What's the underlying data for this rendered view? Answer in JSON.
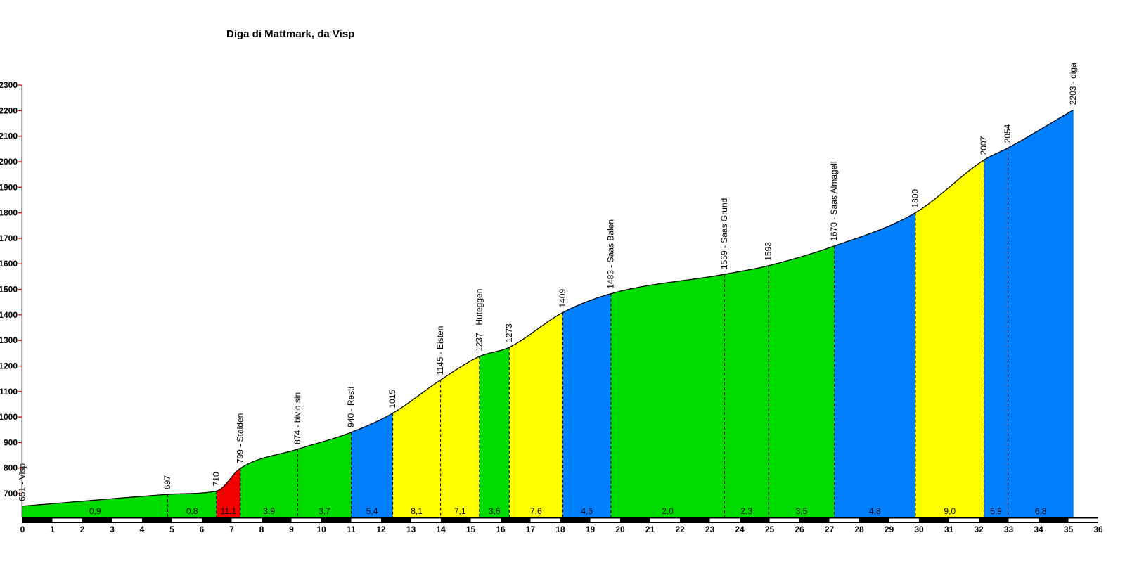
{
  "title": "Diga di Mattmark, da Visp",
  "colors": {
    "green": "#00DC00",
    "blue": "#0080FF",
    "yellow": "#FFFF00",
    "red": "#F20000",
    "tick": "#E00000",
    "line": "#000000",
    "ruler_black": "#000000",
    "ruler_white": "#FFFFFF"
  },
  "chart_data": {
    "type": "area",
    "title": "Diga di Mattmark, da Visp",
    "x_unit": "km",
    "y_unit": "m",
    "xlim": [
      0,
      36
    ],
    "ylim": [
      650,
      2300
    ],
    "grid": false,
    "legend": "none",
    "x_ticks": [
      0,
      1,
      2,
      3,
      4,
      5,
      6,
      7,
      8,
      9,
      10,
      11,
      12,
      13,
      14,
      15,
      16,
      17,
      18,
      19,
      20,
      21,
      22,
      23,
      24,
      25,
      26,
      27,
      28,
      29,
      30,
      31,
      32,
      33,
      34,
      35,
      36
    ],
    "y_ticks": [
      700,
      800,
      900,
      1000,
      1100,
      1200,
      1300,
      1400,
      1500,
      1600,
      1700,
      1800,
      1900,
      2000,
      2100,
      2200,
      2300
    ],
    "points": [
      {
        "km": 0.0,
        "elev": 651,
        "label": "651 - Visp"
      },
      {
        "km": 4.86,
        "elev": 697,
        "label": "697"
      },
      {
        "km": 6.49,
        "elev": 710,
        "label": "710"
      },
      {
        "km": 7.29,
        "elev": 799,
        "label": "799 - Stalden"
      },
      {
        "km": 9.21,
        "elev": 874,
        "label": "874 - bivio sin"
      },
      {
        "km": 11.0,
        "elev": 940,
        "label": "940 - Resti"
      },
      {
        "km": 12.39,
        "elev": 1015,
        "label": "1015"
      },
      {
        "km": 13.99,
        "elev": 1145,
        "label": "1145 - Eisten"
      },
      {
        "km": 15.29,
        "elev": 1237,
        "label": "1237 - Huteggen"
      },
      {
        "km": 16.29,
        "elev": 1273,
        "label": "1273"
      },
      {
        "km": 18.08,
        "elev": 1409,
        "label": "1409"
      },
      {
        "km": 19.69,
        "elev": 1483,
        "label": "1483 - Saas Balen"
      },
      {
        "km": 23.49,
        "elev": 1559,
        "label": "1559 - Saas Grund"
      },
      {
        "km": 24.97,
        "elev": 1593,
        "label": "1593"
      },
      {
        "km": 27.17,
        "elev": 1670,
        "label": "1670 - Saas Almagell"
      },
      {
        "km": 29.88,
        "elev": 1800,
        "label": "1800"
      },
      {
        "km": 32.18,
        "elev": 2007,
        "label": "2007"
      },
      {
        "km": 32.98,
        "elev": 2054,
        "label": "2054"
      },
      {
        "km": 35.17,
        "elev": 2203,
        "label": "2203 - diga"
      }
    ],
    "segments": [
      {
        "gradient": "0,9",
        "color": "green"
      },
      {
        "gradient": "0,8",
        "color": "green"
      },
      {
        "gradient": "11,1",
        "color": "red"
      },
      {
        "gradient": "3,9",
        "color": "green"
      },
      {
        "gradient": "3,7",
        "color": "green"
      },
      {
        "gradient": "5,4",
        "color": "blue"
      },
      {
        "gradient": "8,1",
        "color": "yellow"
      },
      {
        "gradient": "7,1",
        "color": "yellow"
      },
      {
        "gradient": "3,6",
        "color": "green"
      },
      {
        "gradient": "7,6",
        "color": "yellow"
      },
      {
        "gradient": "4,6",
        "color": "blue"
      },
      {
        "gradient": "2,0",
        "color": "green"
      },
      {
        "gradient": "2,3",
        "color": "green"
      },
      {
        "gradient": "3,5",
        "color": "green"
      },
      {
        "gradient": "4,8",
        "color": "blue"
      },
      {
        "gradient": "9,0",
        "color": "yellow"
      },
      {
        "gradient": "5,9",
        "color": "blue"
      },
      {
        "gradient": "6,8",
        "color": "blue"
      }
    ]
  }
}
